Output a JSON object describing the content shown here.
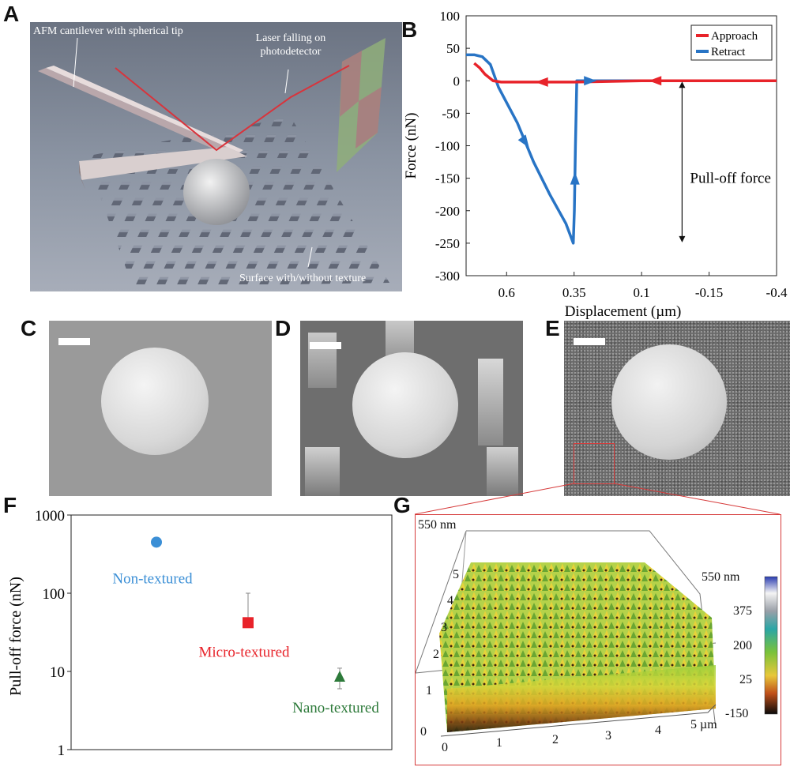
{
  "panels": {
    "A": {
      "letter": "A",
      "labels": {
        "cantilever": "AFM cantilever with spherical tip",
        "laser": "Laser falling on photodetector",
        "surface": "Surface with/without texture"
      }
    },
    "B": {
      "letter": "B"
    },
    "C": {
      "letter": "C"
    },
    "D": {
      "letter": "D"
    },
    "E": {
      "letter": "E"
    },
    "F": {
      "letter": "F"
    },
    "G": {
      "letter": "G",
      "z_top_label": "550 nm",
      "x_ticks": [
        "0",
        "1",
        "2",
        "3",
        "4",
        "5 µm"
      ],
      "y_ticks": [
        "0",
        "1",
        "2",
        "3",
        "4",
        "5"
      ],
      "colorbar_ticks": [
        "550 nm",
        "375",
        "200",
        "25",
        "-150"
      ]
    }
  },
  "chart_data": [
    {
      "type": "line",
      "panel": "B",
      "xlabel": "Displacement (µm)",
      "ylabel": "Force (nN)",
      "x_reversed": true,
      "xlim": [
        0.75,
        -0.4
      ],
      "ylim": [
        -300,
        100
      ],
      "x_ticks": [
        "0.6",
        "0.35",
        "0.1",
        "-0.15",
        "-0.4"
      ],
      "y_ticks": [
        "100",
        "50",
        "0",
        "-50",
        "-100",
        "-150",
        "-200",
        "-250",
        "-300"
      ],
      "legend_position": "top-right",
      "annotation": "Pull-off force",
      "series": [
        {
          "name": "Approach",
          "color": "#e8232a",
          "x": [
            -0.4,
            0.1,
            0.35,
            0.62,
            0.65,
            0.68,
            0.7,
            0.72
          ],
          "y": [
            0,
            0,
            -2,
            -2,
            0,
            10,
            20,
            27
          ]
        },
        {
          "name": "Retract",
          "color": "#2874c5",
          "x": [
            0.75,
            0.72,
            0.69,
            0.66,
            0.63,
            0.56,
            0.5,
            0.44,
            0.38,
            0.353,
            0.349,
            0.345,
            0.34,
            0.3,
            0.1,
            -0.15,
            -0.4
          ],
          "y": [
            40,
            40,
            37,
            25,
            -10,
            -65,
            -125,
            -175,
            -220,
            -250,
            -200,
            -100,
            0,
            0,
            0,
            0,
            0
          ]
        }
      ]
    },
    {
      "type": "scatter",
      "panel": "F",
      "ylabel": "Pull-off force (nN)",
      "yscale": "log",
      "ylim": [
        1,
        1000
      ],
      "y_ticks": [
        "1000",
        "100",
        "10",
        "1"
      ],
      "categories": [
        "Non-textured",
        "Micro-textured",
        "Nano-textured"
      ],
      "values": [
        450,
        42,
        8.5
      ],
      "errors_upper": [
        null,
        100,
        11
      ],
      "errors_lower": [
        null,
        42,
        6
      ],
      "markers": [
        "circle",
        "square",
        "triangle"
      ],
      "colors": [
        "#3b8fd6",
        "#e8232a",
        "#2d7a3a"
      ]
    }
  ]
}
